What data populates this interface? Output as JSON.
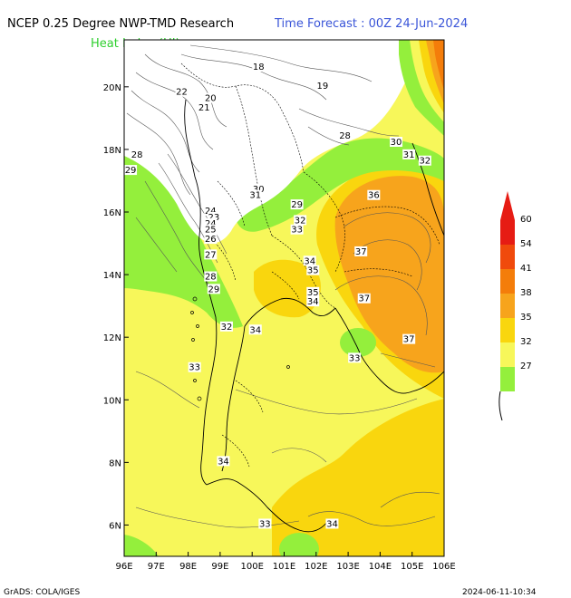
{
  "header": {
    "title_left": "NCEP 0.25 Degree NWP-TMD Research",
    "title_right": "Time Forecast : 00Z 24-Jun-2024",
    "field_label": "Heat Index (HI)"
  },
  "colors": {
    "title_left": "#000000",
    "title_right": "#3a55d8",
    "field_label": "#2ecf2e",
    "background": "#ffffff"
  },
  "map": {
    "lon_range": [
      96,
      106
    ],
    "lat_range": [
      5,
      21.5
    ],
    "lon_ticks": [
      "96E",
      "97E",
      "98E",
      "99E",
      "100E",
      "101E",
      "102E",
      "103E",
      "104E",
      "105E",
      "106E"
    ],
    "lat_ticks": [
      "6N",
      "8N",
      "10N",
      "12N",
      "14N",
      "16N",
      "18N",
      "20N"
    ],
    "contour_labels": [
      {
        "text": "18",
        "lon": 100.2,
        "lat": 20.6
      },
      {
        "text": "19",
        "lon": 102.2,
        "lat": 20.0
      },
      {
        "text": "22",
        "lon": 97.8,
        "lat": 19.8
      },
      {
        "text": "20",
        "lon": 98.7,
        "lat": 19.6
      },
      {
        "text": "21",
        "lon": 98.5,
        "lat": 19.3
      },
      {
        "text": "28",
        "lon": 102.9,
        "lat": 18.4
      },
      {
        "text": "30",
        "lon": 104.5,
        "lat": 18.2
      },
      {
        "text": "31",
        "lon": 104.9,
        "lat": 17.8
      },
      {
        "text": "32",
        "lon": 105.4,
        "lat": 17.6
      },
      {
        "text": "28",
        "lon": 96.4,
        "lat": 17.8
      },
      {
        "text": "29",
        "lon": 96.2,
        "lat": 17.3
      },
      {
        "text": "30",
        "lon": 100.2,
        "lat": 16.7
      },
      {
        "text": "31",
        "lon": 100.1,
        "lat": 16.5
      },
      {
        "text": "29",
        "lon": 101.4,
        "lat": 16.2
      },
      {
        "text": "36",
        "lon": 103.8,
        "lat": 16.5
      },
      {
        "text": "32",
        "lon": 101.5,
        "lat": 15.7
      },
      {
        "text": "33",
        "lon": 101.4,
        "lat": 15.4
      },
      {
        "text": "24",
        "lon": 98.7,
        "lat": 16.0
      },
      {
        "text": "23",
        "lon": 98.8,
        "lat": 15.8
      },
      {
        "text": "24",
        "lon": 98.7,
        "lat": 15.6
      },
      {
        "text": "25",
        "lon": 98.7,
        "lat": 15.4
      },
      {
        "text": "26",
        "lon": 98.7,
        "lat": 15.1
      },
      {
        "text": "27",
        "lon": 98.7,
        "lat": 14.6
      },
      {
        "text": "37",
        "lon": 103.4,
        "lat": 14.7
      },
      {
        "text": "34",
        "lon": 101.8,
        "lat": 14.4
      },
      {
        "text": "35",
        "lon": 101.9,
        "lat": 14.1
      },
      {
        "text": "28",
        "lon": 98.7,
        "lat": 13.9
      },
      {
        "text": "29",
        "lon": 98.8,
        "lat": 13.5
      },
      {
        "text": "35",
        "lon": 101.9,
        "lat": 13.4
      },
      {
        "text": "34",
        "lon": 101.9,
        "lat": 13.1
      },
      {
        "text": "37",
        "lon": 103.5,
        "lat": 13.2
      },
      {
        "text": "32",
        "lon": 99.2,
        "lat": 12.3
      },
      {
        "text": "34",
        "lon": 100.1,
        "lat": 12.2
      },
      {
        "text": "37",
        "lon": 104.9,
        "lat": 11.9
      },
      {
        "text": "33",
        "lon": 103.2,
        "lat": 11.3
      },
      {
        "text": "33",
        "lon": 98.2,
        "lat": 11.0
      },
      {
        "text": "34",
        "lon": 99.1,
        "lat": 8.0
      },
      {
        "text": "33",
        "lon": 100.4,
        "lat": 6.0
      },
      {
        "text": "34",
        "lon": 102.5,
        "lat": 6.0
      }
    ]
  },
  "legend": {
    "levels": [
      {
        "label": "60",
        "color": "#e61c14"
      },
      {
        "label": "54",
        "color": "#f04a0c"
      },
      {
        "label": "41",
        "color": "#f47d0a"
      },
      {
        "label": "38",
        "color": "#f7a41c"
      },
      {
        "label": "35",
        "color": "#f9d60e"
      },
      {
        "label": "32",
        "color": "#f7f75a"
      },
      {
        "label": "27",
        "color": "#94ef3c"
      }
    ],
    "top_color": "#e61c14"
  },
  "footer": {
    "left": "GrADS: COLA/IGES",
    "right": "2024-06-11-10:34"
  }
}
